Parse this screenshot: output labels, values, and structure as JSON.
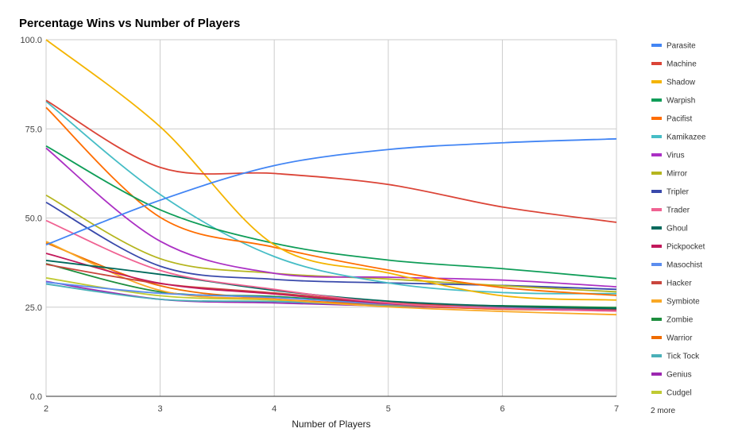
{
  "chart_data": {
    "type": "line",
    "title": "Percentage Wins vs Number of Players",
    "xlabel": "Number of Players",
    "ylabel": "",
    "x": [
      2,
      3,
      4,
      5,
      6,
      7
    ],
    "xlim": [
      2,
      7
    ],
    "ylim": [
      0,
      100
    ],
    "x_ticks": [
      "2",
      "3",
      "4",
      "5",
      "6",
      "7"
    ],
    "y_ticks": [
      "0.0",
      "25.0",
      "50.0",
      "75.0",
      "100.0"
    ],
    "grid": true,
    "legend_position": "right",
    "legend_more": "2 more",
    "series": [
      {
        "name": "Parasite",
        "color": "#4285f4",
        "values": [
          42.5,
          55.0,
          64.7,
          69.2,
          71.1,
          72.2
        ]
      },
      {
        "name": "Machine",
        "color": "#db4437",
        "values": [
          83.0,
          64.2,
          62.5,
          59.4,
          53.1,
          48.8
        ]
      },
      {
        "name": "Shadow",
        "color": "#f4b400",
        "values": [
          100.0,
          75.6,
          42.5,
          34.6,
          28.2,
          27.0
        ]
      },
      {
        "name": "Warpish",
        "color": "#0f9d58",
        "values": [
          70.2,
          52.3,
          42.9,
          38.2,
          35.8,
          33.0
        ]
      },
      {
        "name": "Pacifist",
        "color": "#ff6d00",
        "values": [
          81.0,
          50.2,
          41.8,
          35.4,
          30.5,
          28.3
        ]
      },
      {
        "name": "Kamikazee",
        "color": "#46bdc6",
        "values": [
          82.7,
          56.6,
          39.2,
          31.8,
          29.1,
          28.8
        ]
      },
      {
        "name": "Virus",
        "color": "#ab30c4",
        "values": [
          69.6,
          43.5,
          34.5,
          33.4,
          32.6,
          30.7
        ]
      },
      {
        "name": "Mirror",
        "color": "#b5b51e",
        "values": [
          56.4,
          38.6,
          34.5,
          32.9,
          31.0,
          29.3
        ]
      },
      {
        "name": "Tripler",
        "color": "#3949ab",
        "values": [
          54.4,
          36.5,
          32.8,
          31.8,
          31.1,
          30.0
        ]
      },
      {
        "name": "Trader",
        "color": "#f06292",
        "values": [
          49.3,
          35.3,
          30.0,
          26.2,
          24.6,
          23.9
        ]
      },
      {
        "name": "Ghoul",
        "color": "#00695c",
        "values": [
          38.1,
          34.2,
          29.7,
          26.7,
          25.3,
          24.6
        ]
      },
      {
        "name": "Pickpocket",
        "color": "#c2185b",
        "values": [
          40.1,
          31.7,
          28.7,
          26.0,
          24.6,
          24.0
        ]
      },
      {
        "name": "Masochist",
        "color": "#5b8def",
        "values": [
          32.0,
          28.9,
          27.7,
          25.8,
          24.8,
          24.0
        ]
      },
      {
        "name": "Hacker",
        "color": "#c9463d",
        "values": [
          37.0,
          31.6,
          29.0,
          26.3,
          25.1,
          24.4
        ]
      },
      {
        "name": "Symbiote",
        "color": "#f9a825",
        "values": [
          43.4,
          29.7,
          27.2,
          25.1,
          23.8,
          22.9
        ]
      },
      {
        "name": "Zombie",
        "color": "#1e8e3e",
        "values": [
          37.2,
          29.3,
          28.0,
          26.0,
          25.4,
          24.9
        ]
      },
      {
        "name": "Warrior",
        "color": "#ef6c00",
        "values": [
          43.0,
          31.0,
          27.3,
          25.7,
          24.4,
          24.2
        ]
      },
      {
        "name": "Tick Tock",
        "color": "#4ab0b8",
        "values": [
          31.5,
          27.2,
          26.6,
          25.4,
          24.9,
          24.3
        ]
      },
      {
        "name": "Genius",
        "color": "#9c27b0",
        "values": [
          32.2,
          27.2,
          26.2,
          25.3,
          24.5,
          24.0
        ]
      },
      {
        "name": "Cudgel",
        "color": "#c0ca33",
        "values": [
          33.2,
          28.2,
          27.0,
          25.4,
          24.7,
          24.6
        ]
      }
    ]
  }
}
